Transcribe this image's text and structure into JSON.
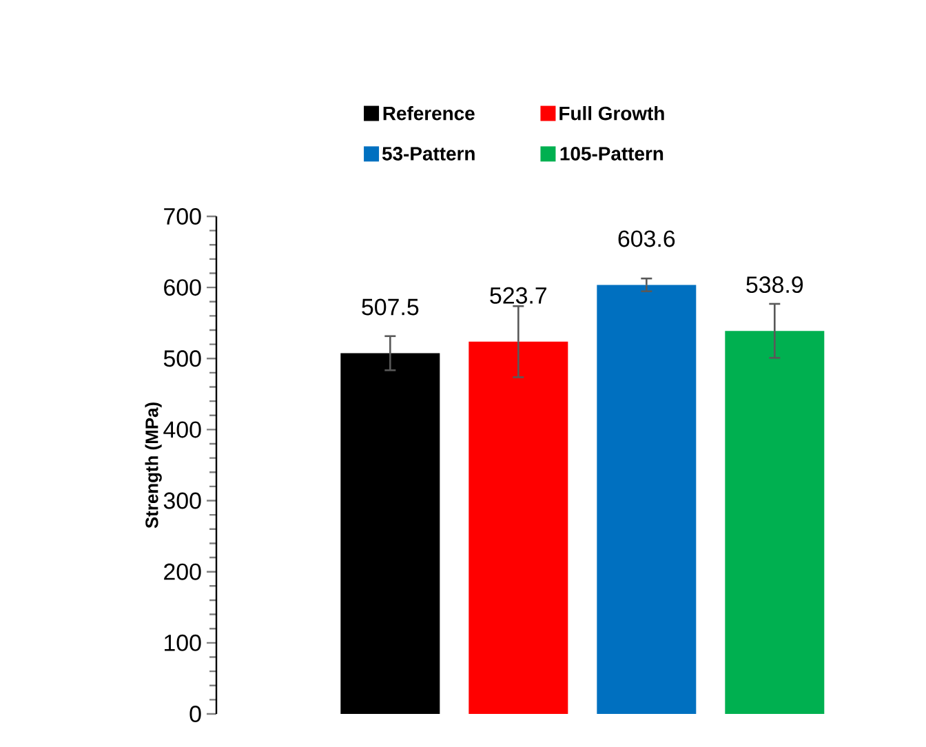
{
  "chart_data": {
    "type": "bar",
    "ylabel": "Strength (MPa)",
    "categories": [
      null
    ],
    "series": [
      {
        "name": "Reference",
        "color": "#000000",
        "values": [
          507.5
        ],
        "errors": [
          24
        ]
      },
      {
        "name": "Full Growth",
        "color": "#ff0000",
        "values": [
          523.7
        ],
        "errors": [
          50
        ]
      },
      {
        "name": "53-Pattern",
        "color": "#0070c0",
        "values": [
          603.6
        ],
        "errors": [
          9
        ]
      },
      {
        "name": "105-Pattern",
        "color": "#00b050",
        "values": [
          538.9
        ],
        "errors": [
          38
        ]
      }
    ],
    "ylim": [
      0,
      700
    ],
    "yticks": [
      0,
      100,
      200,
      300,
      400,
      500,
      600,
      700
    ],
    "data_labels": true,
    "legend": "top",
    "grid": false
  }
}
